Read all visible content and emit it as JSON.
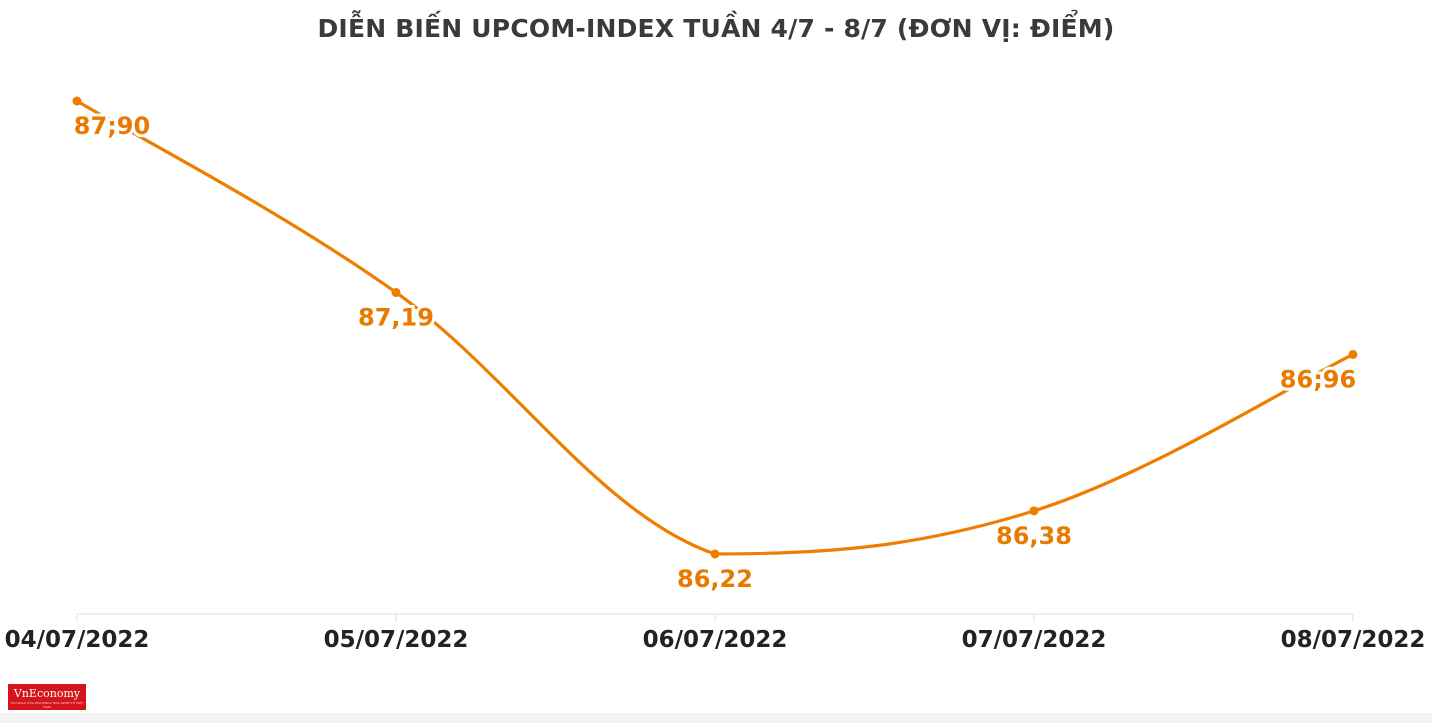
{
  "chart_data": {
    "type": "line",
    "title": "DIỄN BIẾN UPCOM-INDEX TUẦN 4/7 - 8/7 (ĐƠN VỊ: ĐIỂM)",
    "categories": [
      "04/07/2022",
      "05/07/2022",
      "06/07/2022",
      "07/07/2022",
      "08/07/2022"
    ],
    "values": [
      87.9,
      87.19,
      86.22,
      86.38,
      86.96
    ],
    "value_labels": [
      "87;90",
      "87,19",
      "86,22",
      "86,38",
      "86;96"
    ],
    "ylim": [
      85.5,
      88.0
    ],
    "grid": false,
    "legend": "none",
    "line_color": "#ef7d00",
    "label_color": "#e97a00",
    "axis_color": "#dddddd"
  },
  "branding": {
    "logo_text": "VnEconomy",
    "logo_subtext": "CƠ QUAN CỦA HỘI KHOA HỌC KINH TẾ VIỆT NAM",
    "logo_color": "#d4161c"
  }
}
